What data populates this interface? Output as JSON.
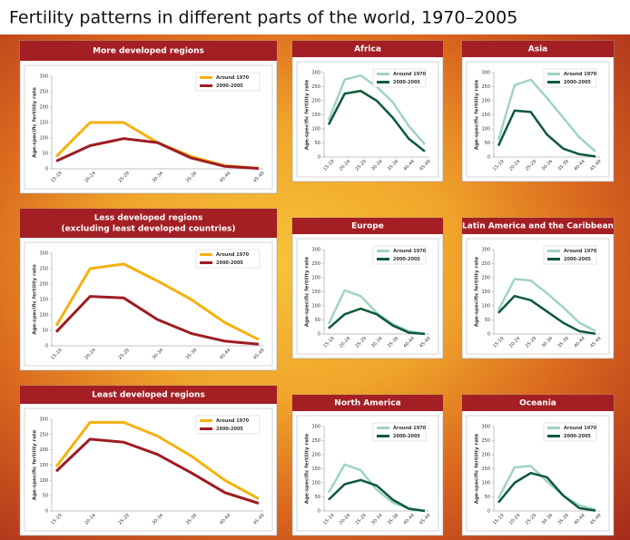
{
  "title": "Fertility patterns in different parts of the world, 1970–2005",
  "chart_data": [
    {
      "type": "line",
      "title": "More developed regions",
      "y_label": "Age-specific fertility rate",
      "categories": [
        "15-19",
        "20-24",
        "25-29",
        "30-34",
        "35-39",
        "40-44",
        "45-49"
      ],
      "ylim": [
        0,
        300
      ],
      "yticks": [
        0,
        50,
        100,
        150,
        200,
        250,
        300
      ],
      "series": [
        {
          "name": "Around 1970",
          "color": "#f5b10f",
          "values": [
            40,
            150,
            150,
            85,
            40,
            10,
            2
          ]
        },
        {
          "name": "2000-2005",
          "color": "#9e1c22",
          "values": [
            25,
            75,
            98,
            85,
            35,
            8,
            1
          ]
        }
      ]
    },
    {
      "type": "line",
      "title": "Less developed regions",
      "subtitle": "(excluding least developed countries)",
      "y_label": "Age-specific fertility rate",
      "categories": [
        "15-19",
        "20-24",
        "25-29",
        "30-34",
        "35-39",
        "40-44",
        "45-49"
      ],
      "ylim": [
        0,
        300
      ],
      "yticks": [
        0,
        50,
        100,
        150,
        200,
        250,
        300
      ],
      "series": [
        {
          "name": "Around 1970",
          "color": "#f5b10f",
          "values": [
            65,
            250,
            265,
            210,
            150,
            75,
            20
          ]
        },
        {
          "name": "2000-2005",
          "color": "#9e1c22",
          "values": [
            45,
            160,
            155,
            85,
            40,
            15,
            5
          ]
        }
      ]
    },
    {
      "type": "line",
      "title": "Least developed regions",
      "y_label": "Age-specific fertility rate",
      "categories": [
        "15-19",
        "20-24",
        "25-29",
        "30-34",
        "35-39",
        "40-44",
        "45-49"
      ],
      "ylim": [
        0,
        300
      ],
      "yticks": [
        0,
        50,
        100,
        150,
        200,
        250,
        300
      ],
      "series": [
        {
          "name": "Around 1970",
          "color": "#f5b10f",
          "values": [
            145,
            290,
            290,
            245,
            180,
            100,
            40
          ]
        },
        {
          "name": "2000-2005",
          "color": "#9e1c22",
          "values": [
            130,
            235,
            225,
            185,
            125,
            60,
            25
          ]
        }
      ]
    },
    {
      "type": "line",
      "title": "Africa",
      "y_label": "Age-specific fertility rate",
      "categories": [
        "15-19",
        "20-24",
        "25-29",
        "30-34",
        "35-39",
        "40-44",
        "45-49"
      ],
      "ylim": [
        0,
        300
      ],
      "yticks": [
        0,
        50,
        100,
        150,
        200,
        250,
        300
      ],
      "series": [
        {
          "name": "Around 1970",
          "color": "#9fd3c5",
          "values": [
            130,
            275,
            290,
            250,
            195,
            110,
            45
          ]
        },
        {
          "name": "2000-2005",
          "color": "#0b5a37",
          "values": [
            115,
            225,
            235,
            200,
            140,
            65,
            20
          ]
        }
      ]
    },
    {
      "type": "line",
      "title": "Asia",
      "y_label": "Age-specific fertility rate",
      "categories": [
        "15-19",
        "20-24",
        "25-29",
        "30-34",
        "35-39",
        "40-44",
        "45-49"
      ],
      "ylim": [
        0,
        300
      ],
      "yticks": [
        0,
        50,
        100,
        150,
        200,
        250,
        300
      ],
      "series": [
        {
          "name": "Around 1970",
          "color": "#9fd3c5",
          "values": [
            60,
            255,
            275,
            210,
            140,
            70,
            20
          ]
        },
        {
          "name": "2000-2005",
          "color": "#0b5a37",
          "values": [
            40,
            165,
            160,
            80,
            30,
            10,
            2
          ]
        }
      ]
    },
    {
      "type": "line",
      "title": "Europe",
      "y_label": "Age-specific fertility rate",
      "categories": [
        "15-19",
        "20-24",
        "25-29",
        "30-34",
        "35-39",
        "40-44",
        "45-49"
      ],
      "ylim": [
        0,
        300
      ],
      "yticks": [
        0,
        50,
        100,
        150,
        200,
        250,
        300
      ],
      "series": [
        {
          "name": "Around 1970",
          "color": "#9fd3c5",
          "values": [
            35,
            155,
            135,
            75,
            35,
            10,
            1
          ]
        },
        {
          "name": "2000-2005",
          "color": "#0b5a37",
          "values": [
            20,
            70,
            90,
            70,
            30,
            5,
            0
          ]
        }
      ]
    },
    {
      "type": "line",
      "title": "Latin America and the Caribbean",
      "y_label": "Age-specific fertility rate",
      "categories": [
        "15-19",
        "20-24",
        "25-29",
        "30-34",
        "35-39",
        "40-44",
        "45-49"
      ],
      "ylim": [
        0,
        300
      ],
      "yticks": [
        0,
        50,
        100,
        150,
        200,
        250,
        300
      ],
      "series": [
        {
          "name": "Around 1970",
          "color": "#9fd3c5",
          "values": [
            85,
            195,
            190,
            145,
            95,
            40,
            10
          ]
        },
        {
          "name": "2000-2005",
          "color": "#0b5a37",
          "values": [
            75,
            135,
            120,
            80,
            40,
            10,
            1
          ]
        }
      ]
    },
    {
      "type": "line",
      "title": "North America",
      "y_label": "Age-specific fertility rate",
      "categories": [
        "15-19",
        "20-24",
        "25-29",
        "30-34",
        "35-39",
        "40-44",
        "45-49"
      ],
      "ylim": [
        0,
        300
      ],
      "yticks": [
        0,
        50,
        100,
        150,
        200,
        250,
        300
      ],
      "series": [
        {
          "name": "Around 1970",
          "color": "#9fd3c5",
          "values": [
            65,
            165,
            145,
            75,
            30,
            8,
            1
          ]
        },
        {
          "name": "2000-2005",
          "color": "#0b5a37",
          "values": [
            40,
            95,
            110,
            90,
            40,
            8,
            0
          ]
        }
      ]
    },
    {
      "type": "line",
      "title": "Oceania",
      "y_label": "Age-specific fertility rate",
      "categories": [
        "15-19",
        "20-24",
        "25-29",
        "30-34",
        "35-39",
        "40-44",
        "45-49"
      ],
      "ylim": [
        0,
        300
      ],
      "yticks": [
        0,
        50,
        100,
        150,
        200,
        250,
        300
      ],
      "series": [
        {
          "name": "Around 1970",
          "color": "#9fd3c5",
          "values": [
            45,
            155,
            160,
            105,
            55,
            20,
            5
          ]
        },
        {
          "name": "2000-2005",
          "color": "#0b5a37",
          "values": [
            30,
            100,
            135,
            120,
            55,
            10,
            1
          ]
        }
      ]
    }
  ]
}
